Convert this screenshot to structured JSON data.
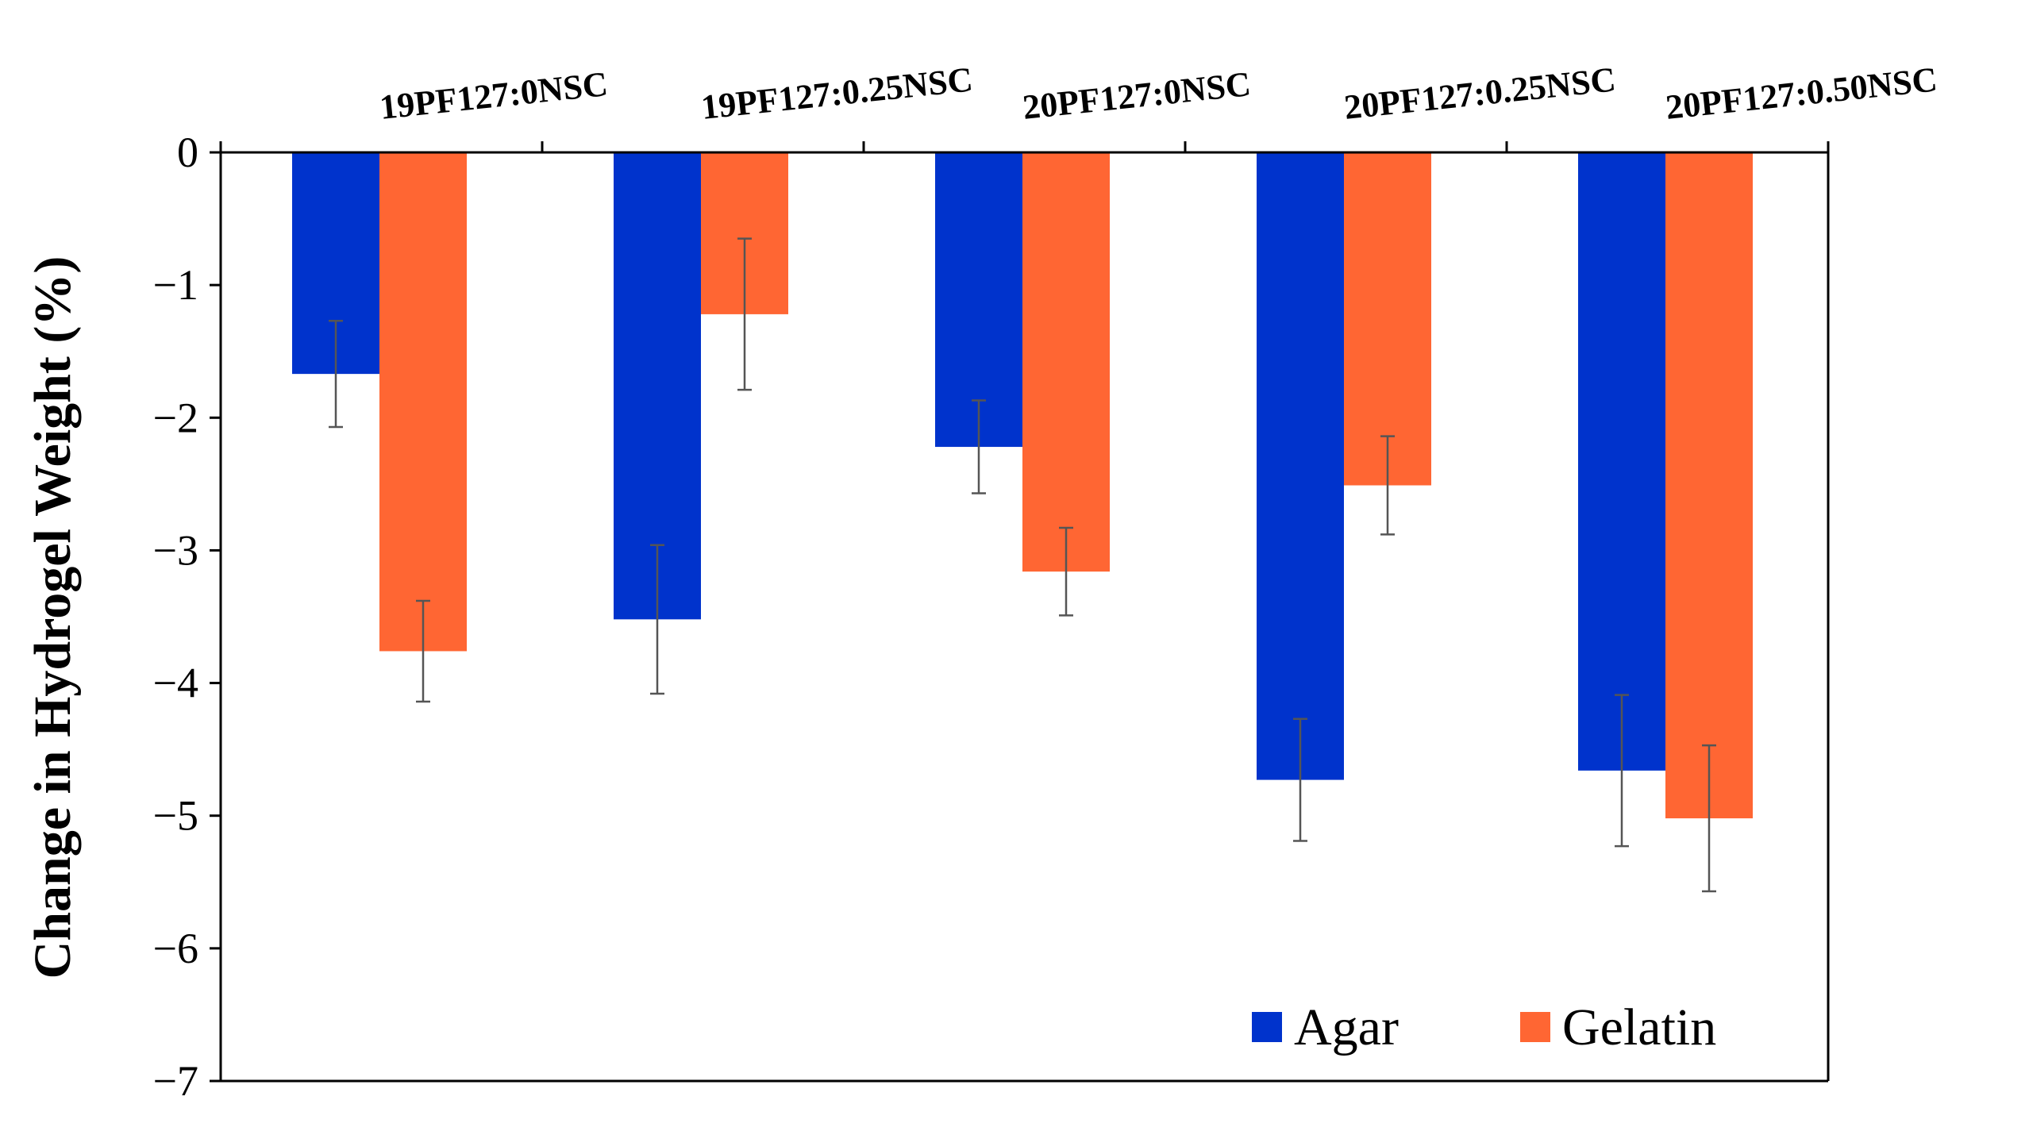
{
  "chart_data": {
    "type": "bar",
    "title": "",
    "xlabel": "",
    "ylabel": "Change in Hydrogel Weight (%)",
    "ylim": [
      -7,
      0
    ],
    "yticks": [
      0,
      -1,
      -2,
      -3,
      -4,
      -5,
      -6,
      -7
    ],
    "ytick_labels": [
      "0",
      "−1",
      "−2",
      "−3",
      "−4",
      "−5",
      "−6",
      "−7"
    ],
    "categories": [
      "19PF127:0NSC",
      "19PF127:0.25NSC",
      "20PF127:0NSC",
      "20PF127:0.25NSC",
      "20PF127:0.50NSC"
    ],
    "category_axis_position": "top",
    "legend_position": "bottom-right",
    "grid": false,
    "series": [
      {
        "name": "Agar",
        "color": "#0033CC",
        "values": [
          -1.67,
          -3.52,
          -2.22,
          -4.73,
          -4.66
        ],
        "errors": [
          0.4,
          0.56,
          0.35,
          0.46,
          0.57
        ]
      },
      {
        "name": "Gelatin",
        "color": "#FF6633",
        "values": [
          -3.76,
          -1.22,
          -3.16,
          -2.51,
          -5.02
        ],
        "errors": [
          0.38,
          0.57,
          0.33,
          0.37,
          0.55
        ]
      }
    ]
  }
}
